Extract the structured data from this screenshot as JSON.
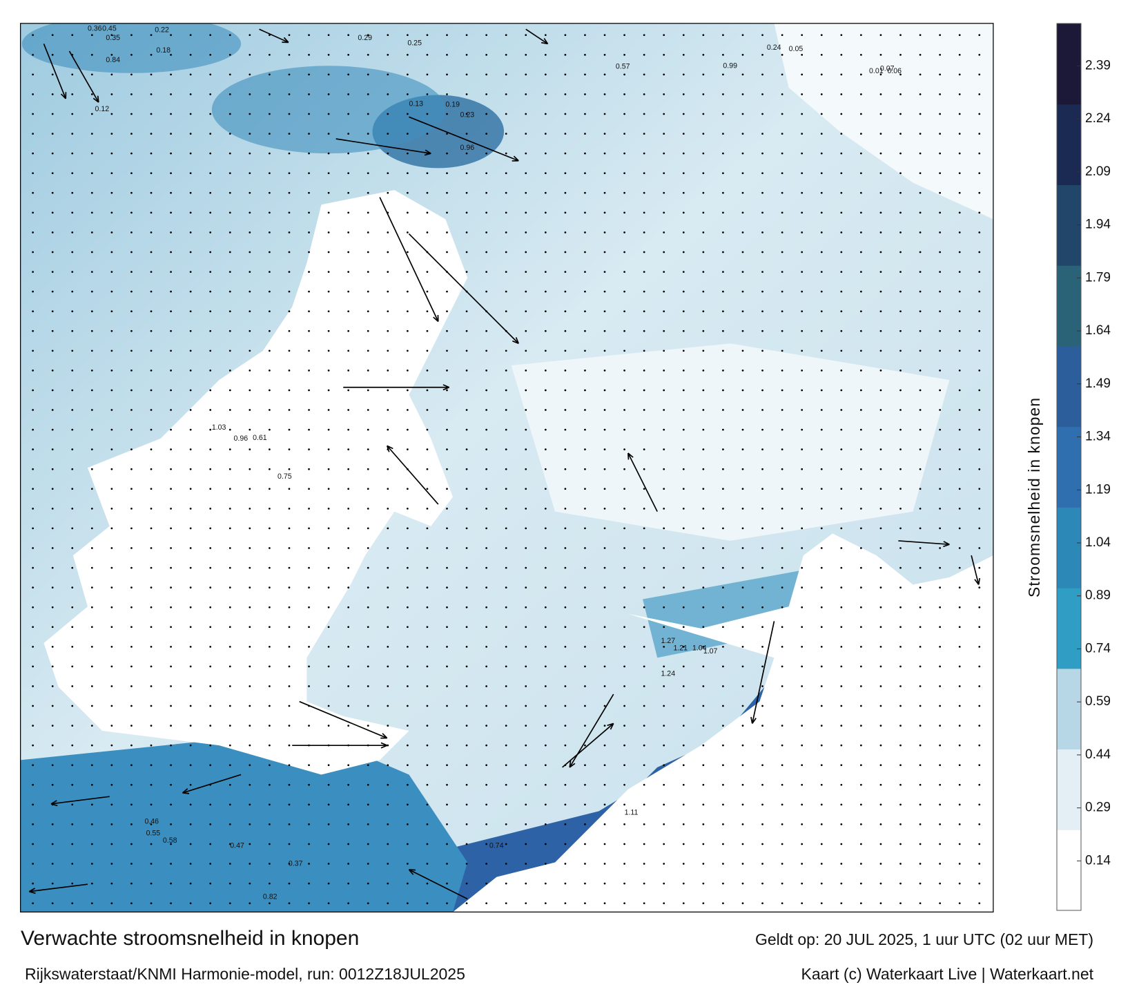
{
  "map": {
    "title": "Verwachte stroomsnelheid in knopen",
    "subtitle": "Rijkswaterstaat/KNMI Harmonie-model, run: 0012Z18JUL2025",
    "valid_time": "Geldt op: 20 JUL 2025, 1 uur UTC (02 uur MET)",
    "credit": "Kaart (c) Waterkaart Live | Waterkaart.net",
    "colorbar": {
      "label": "Stroomsnelheid in knopen",
      "range": [
        0,
        2.51
      ],
      "ticks": [
        0.14,
        0.29,
        0.44,
        0.59,
        0.74,
        0.89,
        1.04,
        1.19,
        1.34,
        1.49,
        1.64,
        1.79,
        1.94,
        2.09,
        2.24,
        2.39
      ],
      "colors": [
        "#ffffff",
        "#e4eff5",
        "#b7d6e6",
        "#2f9dc4",
        "#2c88b6",
        "#2f6fb0",
        "#2b5e9a",
        "#2a6378",
        "#22456a",
        "#1b2a52",
        "#1b1838"
      ]
    },
    "labels": [
      "0.36",
      "0.45",
      "0.35",
      "0.22",
      "0.18",
      "0.84",
      "0.12",
      "0.29",
      "0.25",
      "0.23",
      "0.13",
      "0.19",
      "0.96",
      "0.57",
      "0.99",
      "0.24",
      "0.07",
      "0.05",
      "0.01",
      "0.06",
      "1.03",
      "0.96",
      "0.61",
      "0.75",
      "1.24",
      "1.27",
      "1.21",
      "1.04",
      "1.07",
      "1.11",
      "0.46",
      "0.55",
      "0.58",
      "0.47",
      "0.37",
      "0.74",
      "0.82"
    ]
  }
}
